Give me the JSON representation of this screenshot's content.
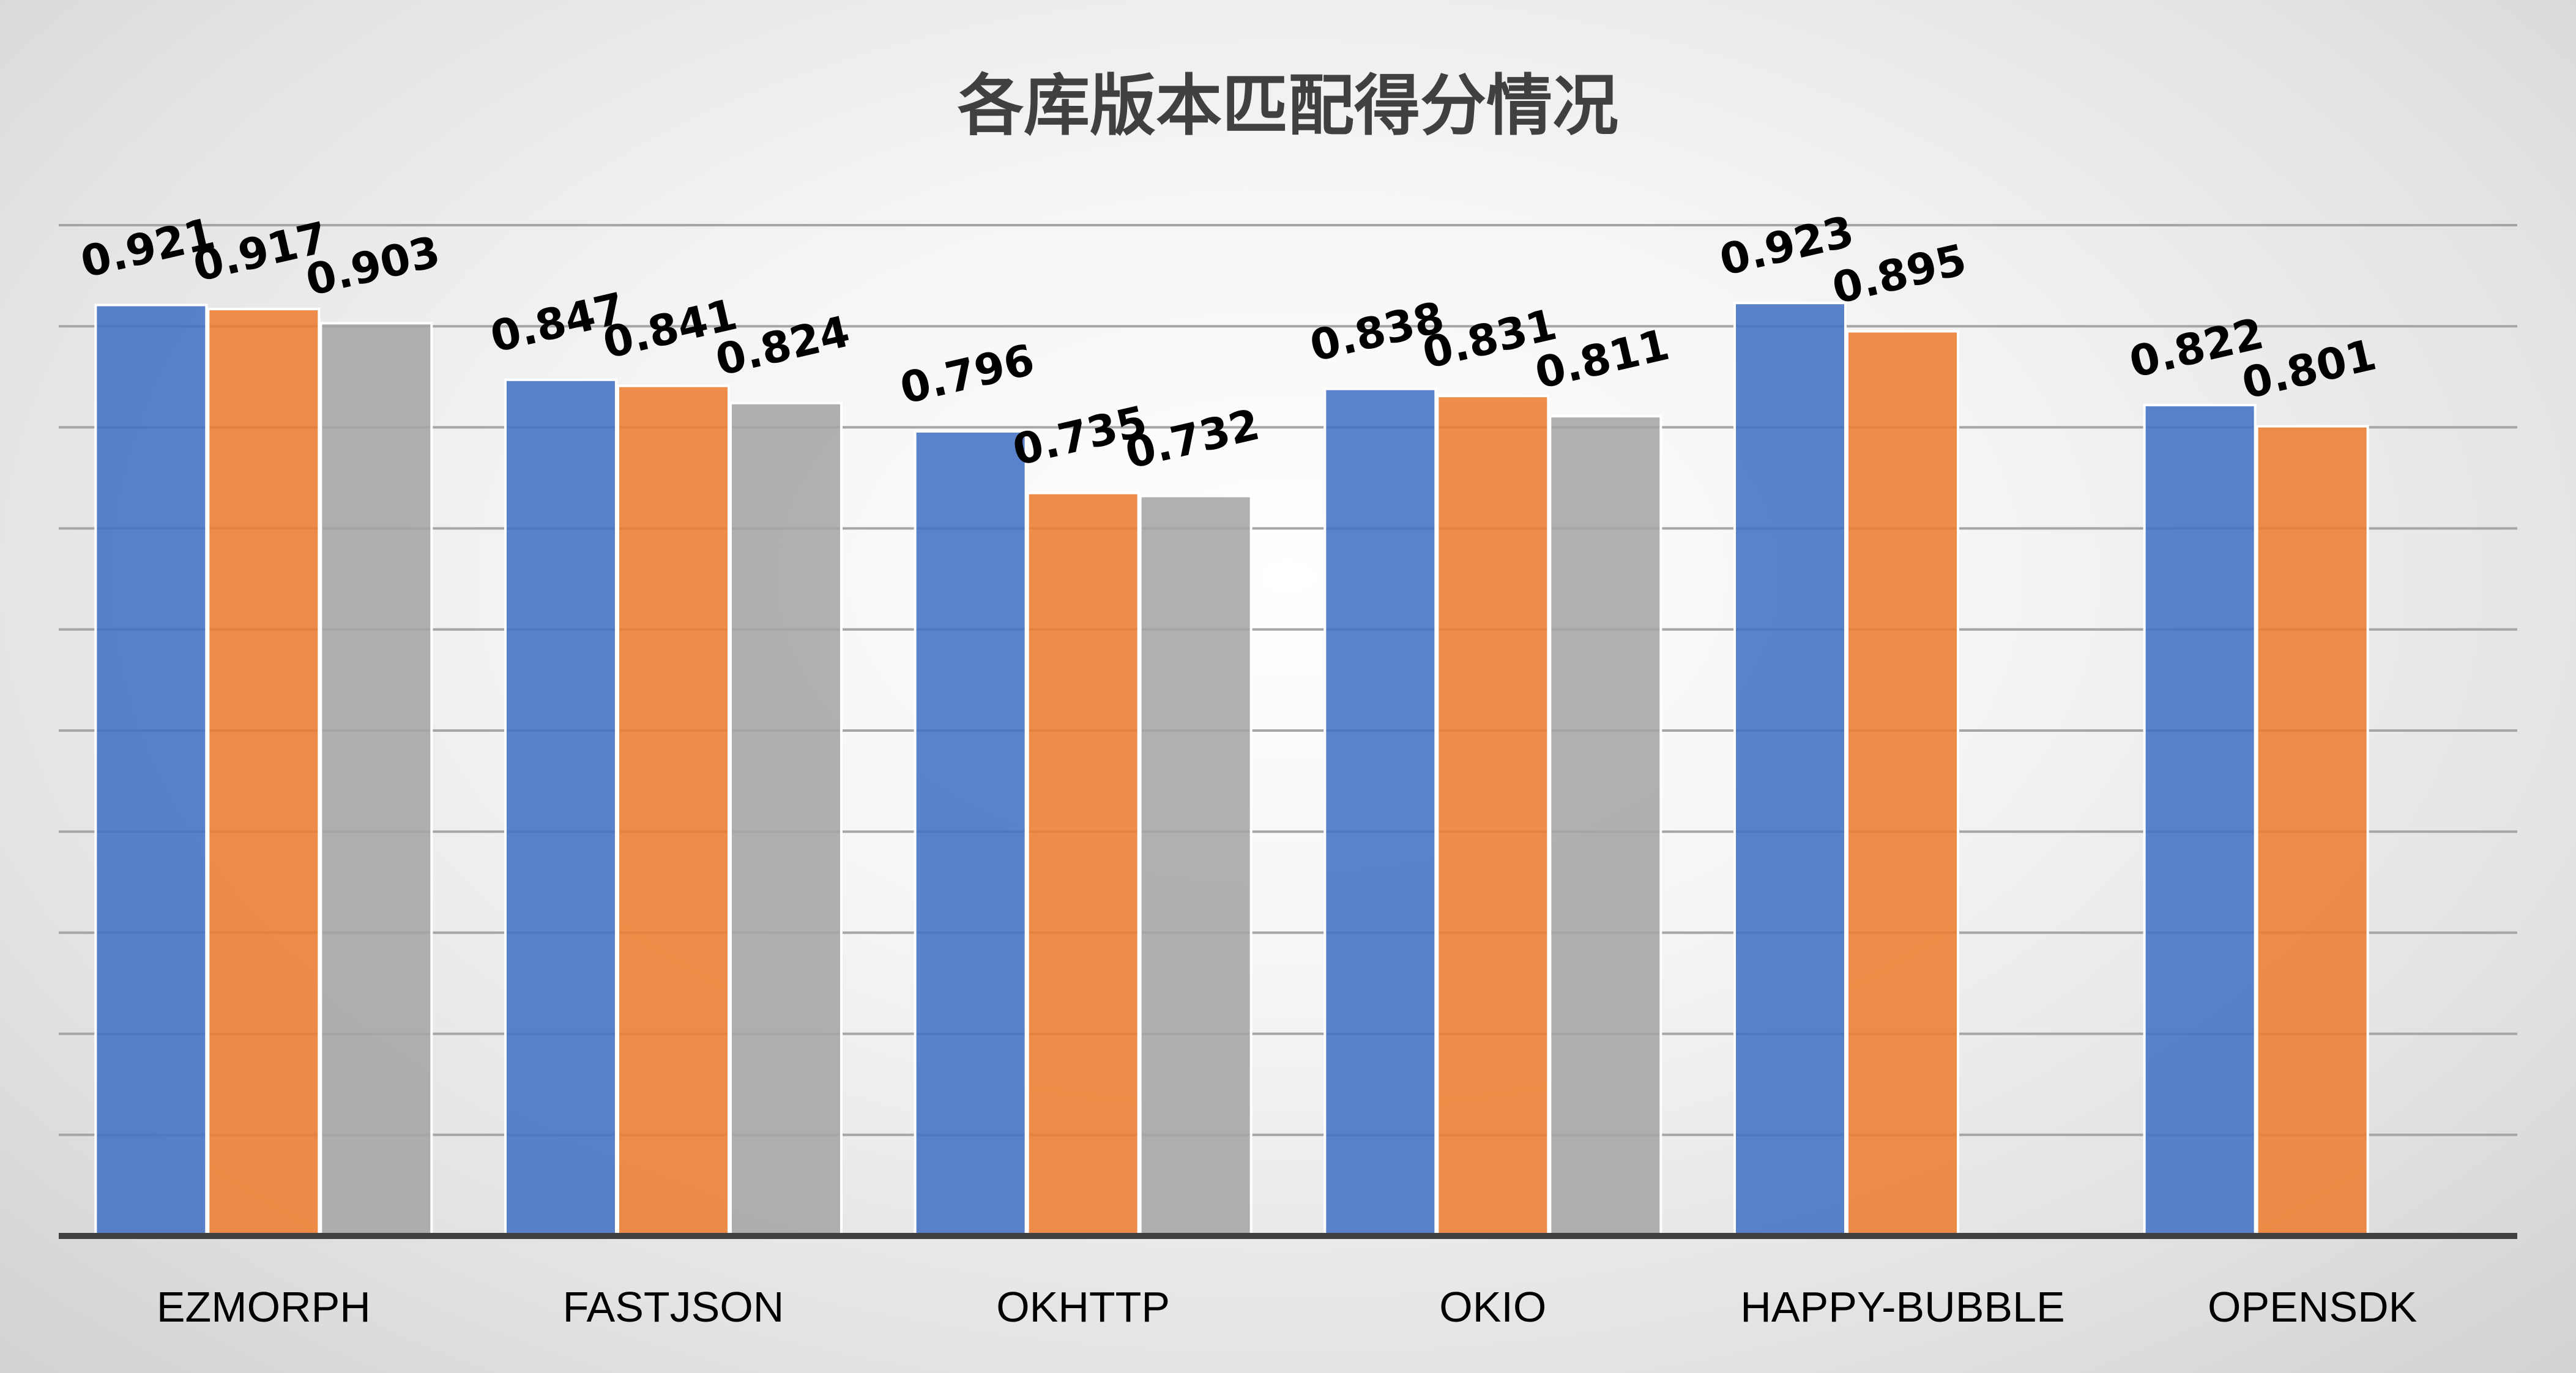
{
  "chart_data": {
    "type": "bar",
    "title": "各库版本匹配得分情况",
    "categories": [
      "EZMORPH",
      "FASTJSON",
      "OKHTTP",
      "OKIO",
      "HAPPY-BUBBLE",
      "OPENSDK"
    ],
    "series": [
      {
        "color": "#4472C4",
        "values": [
          0.921,
          0.847,
          0.796,
          0.838,
          0.923,
          0.822
        ]
      },
      {
        "color": "#ED7D31",
        "values": [
          0.917,
          0.841,
          0.735,
          0.831,
          0.895,
          0.801
        ]
      },
      {
        "color": "#A5A5A5",
        "values": [
          0.903,
          0.824,
          0.732,
          0.811,
          null,
          null
        ]
      }
    ],
    "ylim": [
      0,
      1
    ],
    "gridline_step": 0.1,
    "grid": true,
    "y_axis_labels_shown": false,
    "legend": "none",
    "data_labels": "rotated, above bars"
  }
}
